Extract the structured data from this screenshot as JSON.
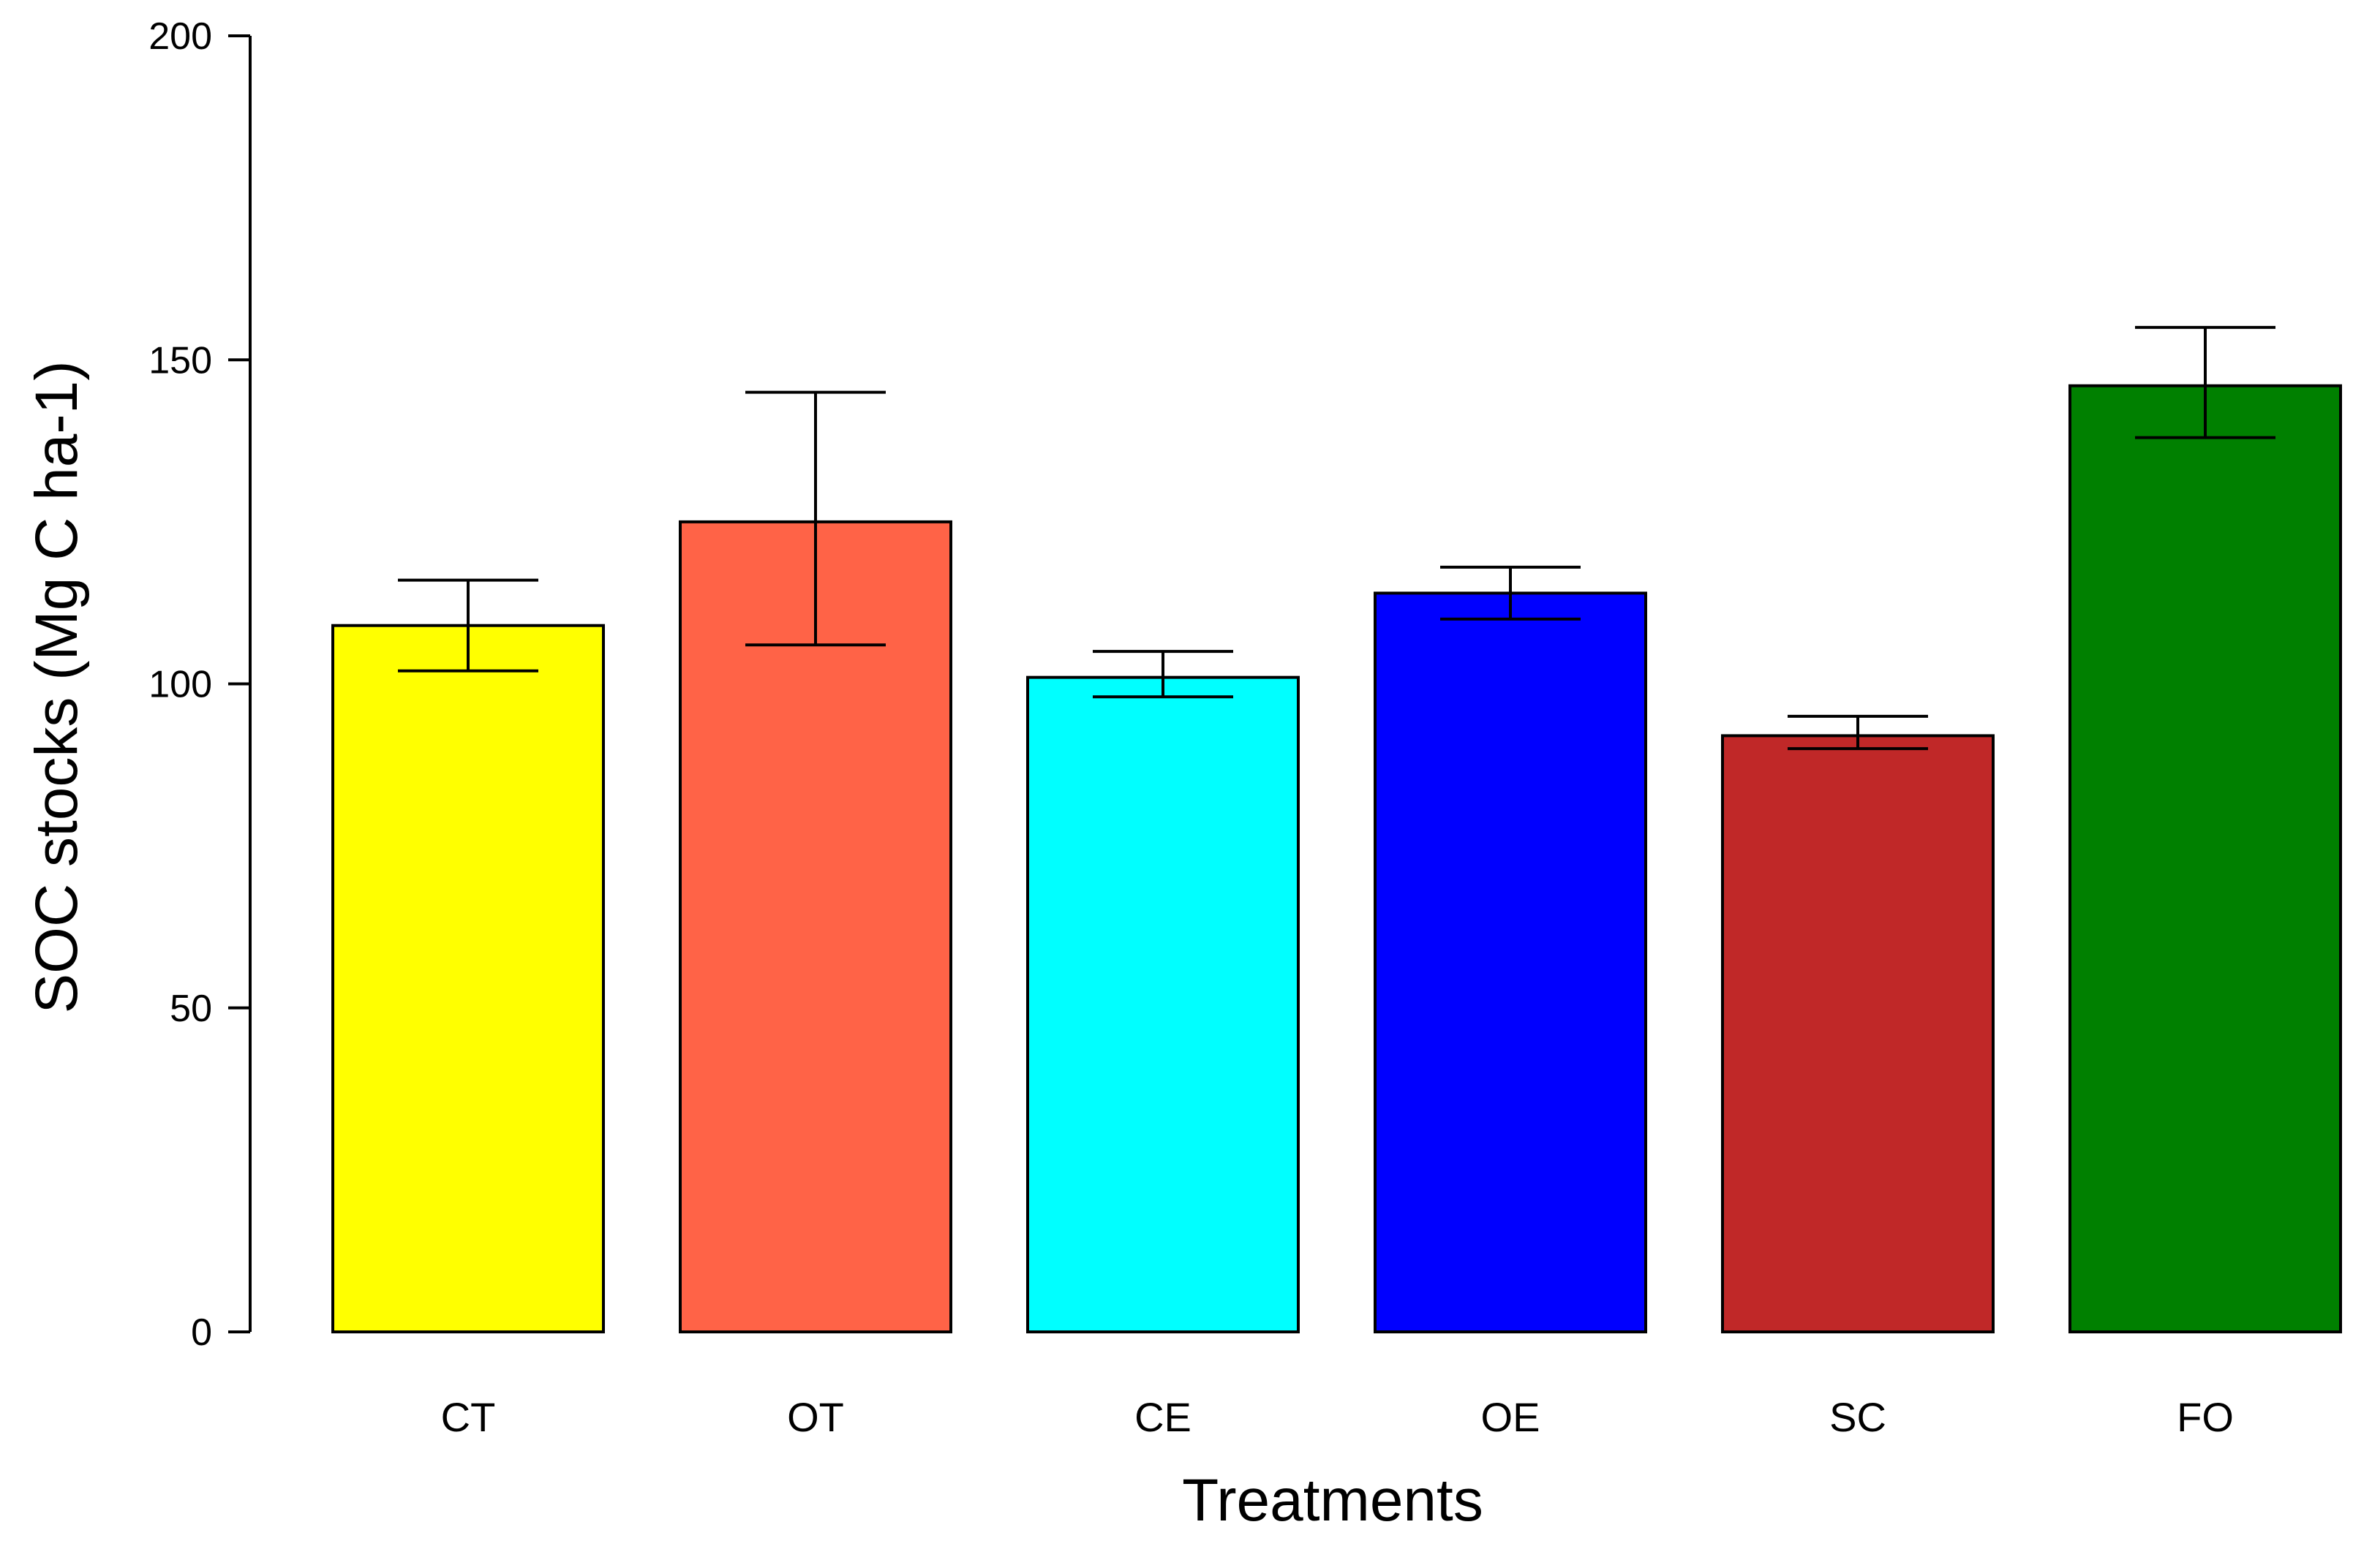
{
  "chart_data": {
    "type": "bar",
    "title": "",
    "xlabel": "Treatments",
    "ylabel": "SOC stocks (Mg C ha-1)",
    "ylim": [
      0,
      200
    ],
    "yticks": [
      0,
      50,
      100,
      150,
      200
    ],
    "grid": false,
    "categories": [
      "CT",
      "OT",
      "CE",
      "OE",
      "SC",
      "FO"
    ],
    "values": [
      109,
      125,
      101,
      114,
      92,
      146
    ],
    "error_lower": [
      102,
      106,
      98,
      110,
      90,
      138
    ],
    "error_upper": [
      116,
      145,
      105,
      118,
      95,
      155
    ],
    "colors": [
      "#FFFF00",
      "#FF6347",
      "#00FFFF",
      "#0000FF",
      "#C02828",
      "#008000"
    ]
  }
}
